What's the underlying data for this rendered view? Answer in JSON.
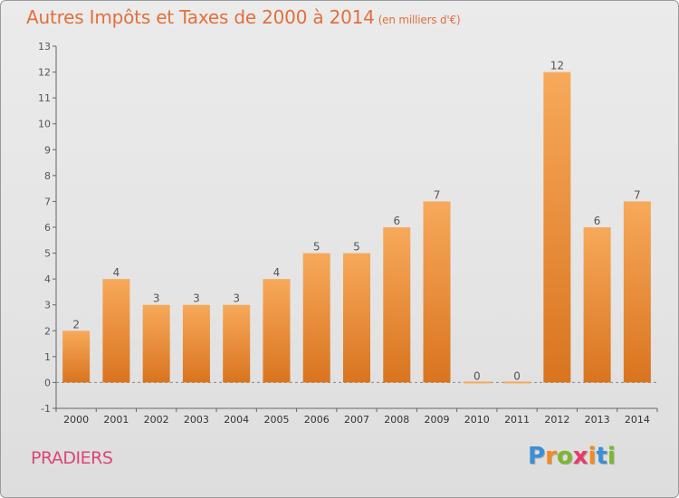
{
  "title": "Autres Impôts et Taxes de 2000 à 2014",
  "subtitle": "(en milliers d'€)",
  "commune": "PRADIERS",
  "logo": {
    "text": "Proxiti",
    "letter_colors": [
      "#3a8fd6",
      "#f28c1c",
      "#7cb82f",
      "#e83a6a",
      "#f28c1c",
      "#3a8fd6",
      "#7cb82f"
    ]
  },
  "colors": {
    "title": "#e0703c",
    "commune": "#d9467a",
    "bar_light": "#f7a95a",
    "bar_dark": "#d9741f"
  },
  "chart_data": {
    "type": "bar",
    "categories": [
      "2000",
      "2001",
      "2002",
      "2003",
      "2004",
      "2005",
      "2006",
      "2007",
      "2008",
      "2009",
      "2010",
      "2011",
      "2012",
      "2013",
      "2014"
    ],
    "values": [
      2,
      4,
      3,
      3,
      3,
      4,
      5,
      5,
      6,
      7,
      0,
      0,
      12,
      6,
      7
    ],
    "data_labels": [
      "2",
      "4",
      "3",
      "3",
      "3",
      "4",
      "5",
      "5",
      "6",
      "7",
      "0",
      "0",
      "12",
      "6",
      "7"
    ],
    "y_ticks": [
      -1,
      0,
      1,
      2,
      3,
      4,
      5,
      6,
      7,
      8,
      9,
      10,
      11,
      12,
      13
    ],
    "ylim": [
      -1,
      13
    ],
    "xlabel": "",
    "ylabel": "",
    "grid": false,
    "legend": "none"
  }
}
